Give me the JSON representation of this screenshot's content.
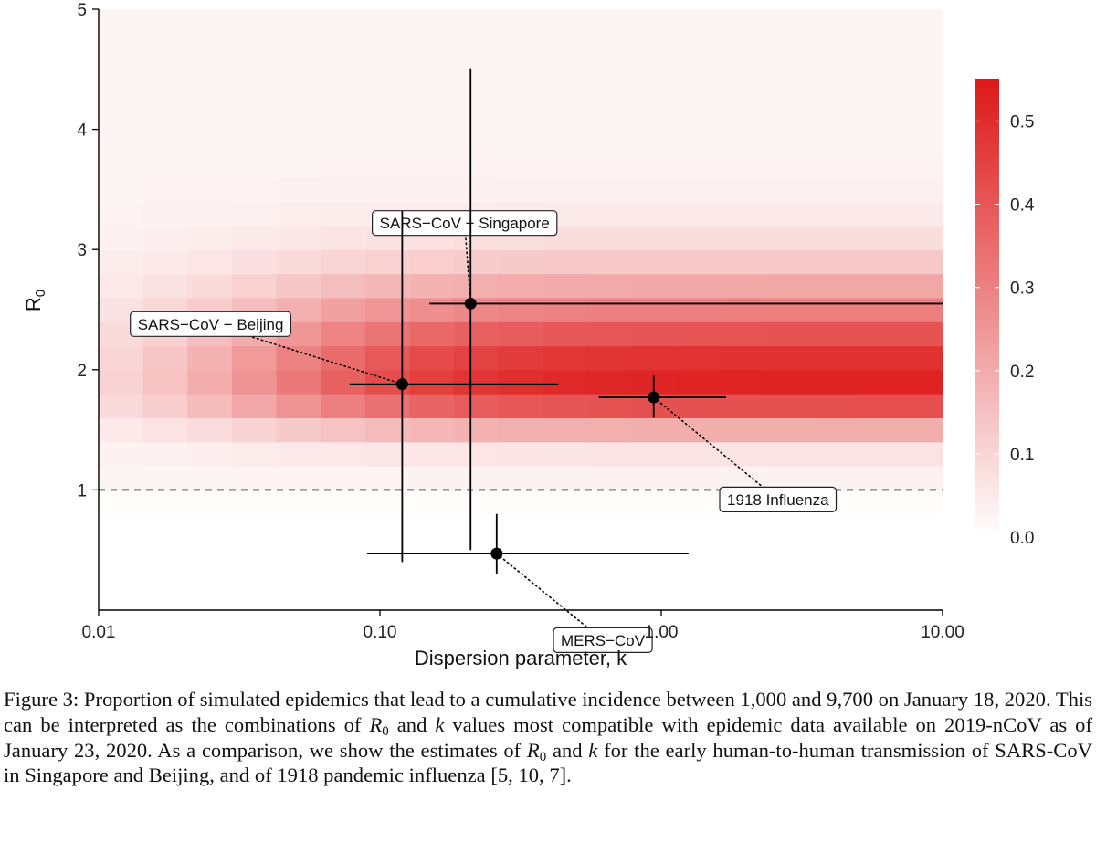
{
  "chart_data": {
    "type": "heatmap",
    "xlabel": "Dispersion parameter, k",
    "ylabel": "R",
    "ylabel_subscript": "0",
    "x_scale": "log",
    "xlim": [
      0.01,
      10
    ],
    "ylim": [
      0,
      5
    ],
    "x_ticks": [
      0.01,
      0.1,
      1,
      10
    ],
    "x_tick_labels": [
      "0.01",
      "0.10",
      "1.00",
      "10.00"
    ],
    "y_ticks": [
      1,
      2,
      3,
      4,
      5
    ],
    "y_tick_labels": [
      "1",
      "2",
      "3",
      "4",
      "5"
    ],
    "grid": false,
    "heatmap": {
      "x_columns": 19,
      "x_range": [
        0.01,
        10
      ],
      "y_range": [
        0.8,
        5
      ],
      "y_step": 0.2,
      "value_range": [
        0,
        0.55
      ]
    },
    "colorbar": {
      "range": [
        0,
        0.55
      ],
      "ticks": [
        0.0,
        0.1,
        0.2,
        0.3,
        0.4,
        0.5
      ],
      "tick_labels": [
        "0.0",
        "0.1",
        "0.2",
        "0.3",
        "0.4",
        "0.5"
      ],
      "color_low": "#ffffff",
      "color_high": "#dd1818",
      "placement": "right"
    },
    "reference_line": {
      "y": 1,
      "style": "dashed"
    },
    "points": [
      {
        "label": "SARS−CoV − Singapore",
        "k": 0.21,
        "k_low": 0.15,
        "k_high": 10,
        "r0": 2.55,
        "r0_low": 0.5,
        "r0_high": 4.5,
        "label_at": [
          0.2,
          3.22
        ]
      },
      {
        "label": "SARS−CoV − Beijing",
        "k": 0.12,
        "k_low": 0.078,
        "k_high": 0.43,
        "r0": 1.88,
        "r0_low": 0.4,
        "r0_high": 3.32,
        "label_at": [
          0.025,
          2.38
        ]
      },
      {
        "label": "1918 Influenza",
        "k": 0.94,
        "k_low": 0.6,
        "k_high": 1.7,
        "r0": 1.77,
        "r0_low": 1.6,
        "r0_high": 1.95,
        "label_at": [
          2.6,
          0.92
        ]
      },
      {
        "label": "MERS−CoV",
        "k": 0.26,
        "k_low": 0.09,
        "k_high": 1.25,
        "r0": 0.47,
        "r0_low": 0.3,
        "r0_high": 0.8,
        "label_at": [
          0.62,
          -0.25
        ]
      }
    ]
  },
  "caption": {
    "figure_label": "Figure 3:",
    "p1": "Proportion of simulated epidemics that lead to a cumulative incidence between 1,000 and 9,700 on January 18, 2020. This can be interpreted as the combinations of ",
    "r_symbol": "R",
    "r_sub": "0",
    "and": " and ",
    "k_symbol": "k",
    "p2": " values most compatible with epidemic data available on 2019-nCoV as of January 23, 2020. As a comparison, we show the estimates of ",
    "p3": " for the early human-to-human transmission of SARS-CoV in Singapore and Beijing, and of 1918 pandemic influenza [5, 10, 7]."
  }
}
